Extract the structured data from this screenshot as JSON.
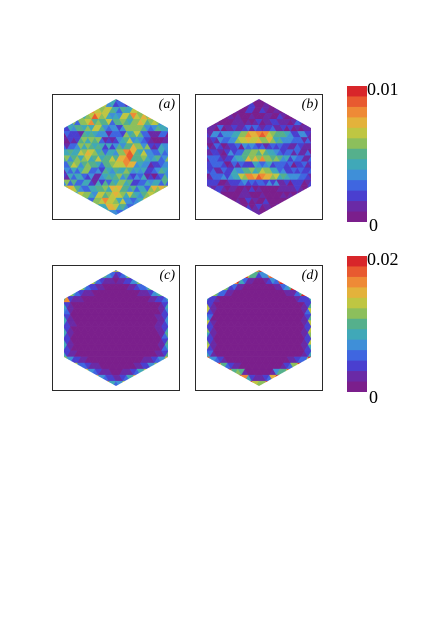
{
  "figure": {
    "panels": [
      {
        "id": "a",
        "label": "(a)",
        "pattern": "mixed-green"
      },
      {
        "id": "b",
        "label": "(b)",
        "pattern": "stripes"
      },
      {
        "id": "c",
        "label": "(c)",
        "pattern": "edges-blue"
      },
      {
        "id": "d",
        "label": "(d)",
        "pattern": "edges-bright"
      }
    ],
    "colorbars": [
      {
        "max_label": "0.01",
        "min_label": "0"
      },
      {
        "max_label": "0.02",
        "min_label": "0"
      }
    ],
    "colormap": [
      "#7b1f8c",
      "#6a2aa6",
      "#4a3fcf",
      "#3f66e0",
      "#3f8fd8",
      "#40a8b8",
      "#55b08c",
      "#8cbf5c",
      "#bfc642",
      "#e3b23b",
      "#ee8a36",
      "#e85a30",
      "#d8262a"
    ]
  }
}
